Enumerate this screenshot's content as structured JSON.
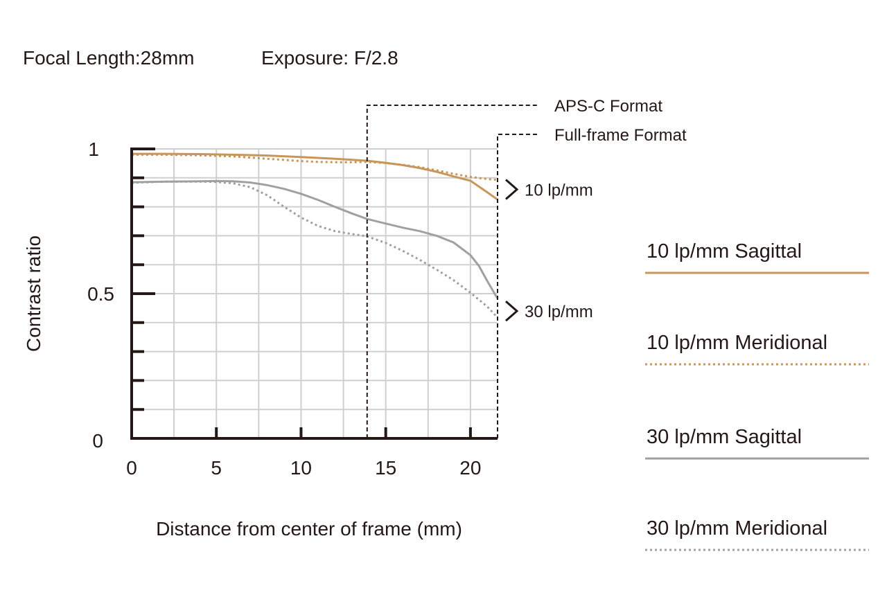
{
  "chart_data": {
    "type": "line",
    "header": {
      "focal_length": "Focal Length:28mm",
      "exposure": "Exposure: F/2.8"
    },
    "xlabel": "Distance from center of frame (mm)",
    "ylabel": "Contrast ratio",
    "xlim": [
      0,
      21.6
    ],
    "ylim": [
      0,
      1
    ],
    "x_ticks": [
      0,
      5,
      10,
      15,
      20
    ],
    "y_tick_labels": [
      {
        "value": 1,
        "label": "1"
      },
      {
        "value": 0.5,
        "label": "0.5"
      },
      {
        "value": 0,
        "label": "0"
      }
    ],
    "grid": true,
    "format_markers": [
      {
        "label": "APS-C Format",
        "x": 13.9
      },
      {
        "label": "Full-frame Format",
        "x": 21.6
      }
    ],
    "group_labels": [
      {
        "label": "10 lp/mm",
        "y": 0.86
      },
      {
        "label": "30 lp/mm",
        "y": 0.44
      }
    ],
    "legend_position": "right",
    "series": [
      {
        "name": "10 lp/mm Sagittal",
        "color": "#c8955a",
        "style": "solid",
        "x": [
          0,
          2,
          4,
          6,
          8,
          10,
          12,
          13.9,
          15,
          16,
          17,
          18,
          19,
          20,
          21,
          21.6
        ],
        "y": [
          0.983,
          0.983,
          0.982,
          0.98,
          0.977,
          0.972,
          0.966,
          0.959,
          0.952,
          0.944,
          0.934,
          0.921,
          0.905,
          0.89,
          0.85,
          0.825
        ]
      },
      {
        "name": "10 lp/mm Meridional",
        "color": "#c8955a",
        "style": "dotted",
        "x": [
          0,
          2,
          4,
          6,
          8,
          10,
          11,
          12,
          13,
          13.9,
          15,
          16,
          17,
          18,
          19,
          20,
          21,
          21.6
        ],
        "y": [
          0.98,
          0.98,
          0.978,
          0.974,
          0.966,
          0.958,
          0.955,
          0.954,
          0.954,
          0.955,
          0.951,
          0.945,
          0.937,
          0.926,
          0.914,
          0.903,
          0.896,
          0.893
        ]
      },
      {
        "name": "30 lp/mm Sagittal",
        "color": "#9fa0a0",
        "style": "solid",
        "x": [
          0,
          2,
          4,
          5,
          6,
          7,
          8,
          9,
          10,
          11,
          12,
          13,
          13.9,
          15,
          16,
          17,
          18,
          19,
          20,
          20.5,
          21,
          21.6
        ],
        "y": [
          0.885,
          0.887,
          0.888,
          0.889,
          0.888,
          0.884,
          0.875,
          0.862,
          0.845,
          0.824,
          0.8,
          0.777,
          0.758,
          0.742,
          0.728,
          0.716,
          0.7,
          0.677,
          0.633,
          0.596,
          0.543,
          0.483
        ]
      },
      {
        "name": "30 lp/mm Meridional",
        "color": "#9fa0a0",
        "style": "dotted",
        "x": [
          0,
          2,
          4,
          5,
          6,
          7,
          8,
          9,
          10,
          11,
          12,
          13,
          13.9,
          15,
          16,
          17,
          18,
          19,
          20,
          21,
          21.6
        ],
        "y": [
          0.883,
          0.887,
          0.887,
          0.886,
          0.881,
          0.868,
          0.84,
          0.8,
          0.763,
          0.734,
          0.716,
          0.706,
          0.698,
          0.675,
          0.648,
          0.617,
          0.583,
          0.547,
          0.503,
          0.455,
          0.417
        ]
      }
    ]
  }
}
